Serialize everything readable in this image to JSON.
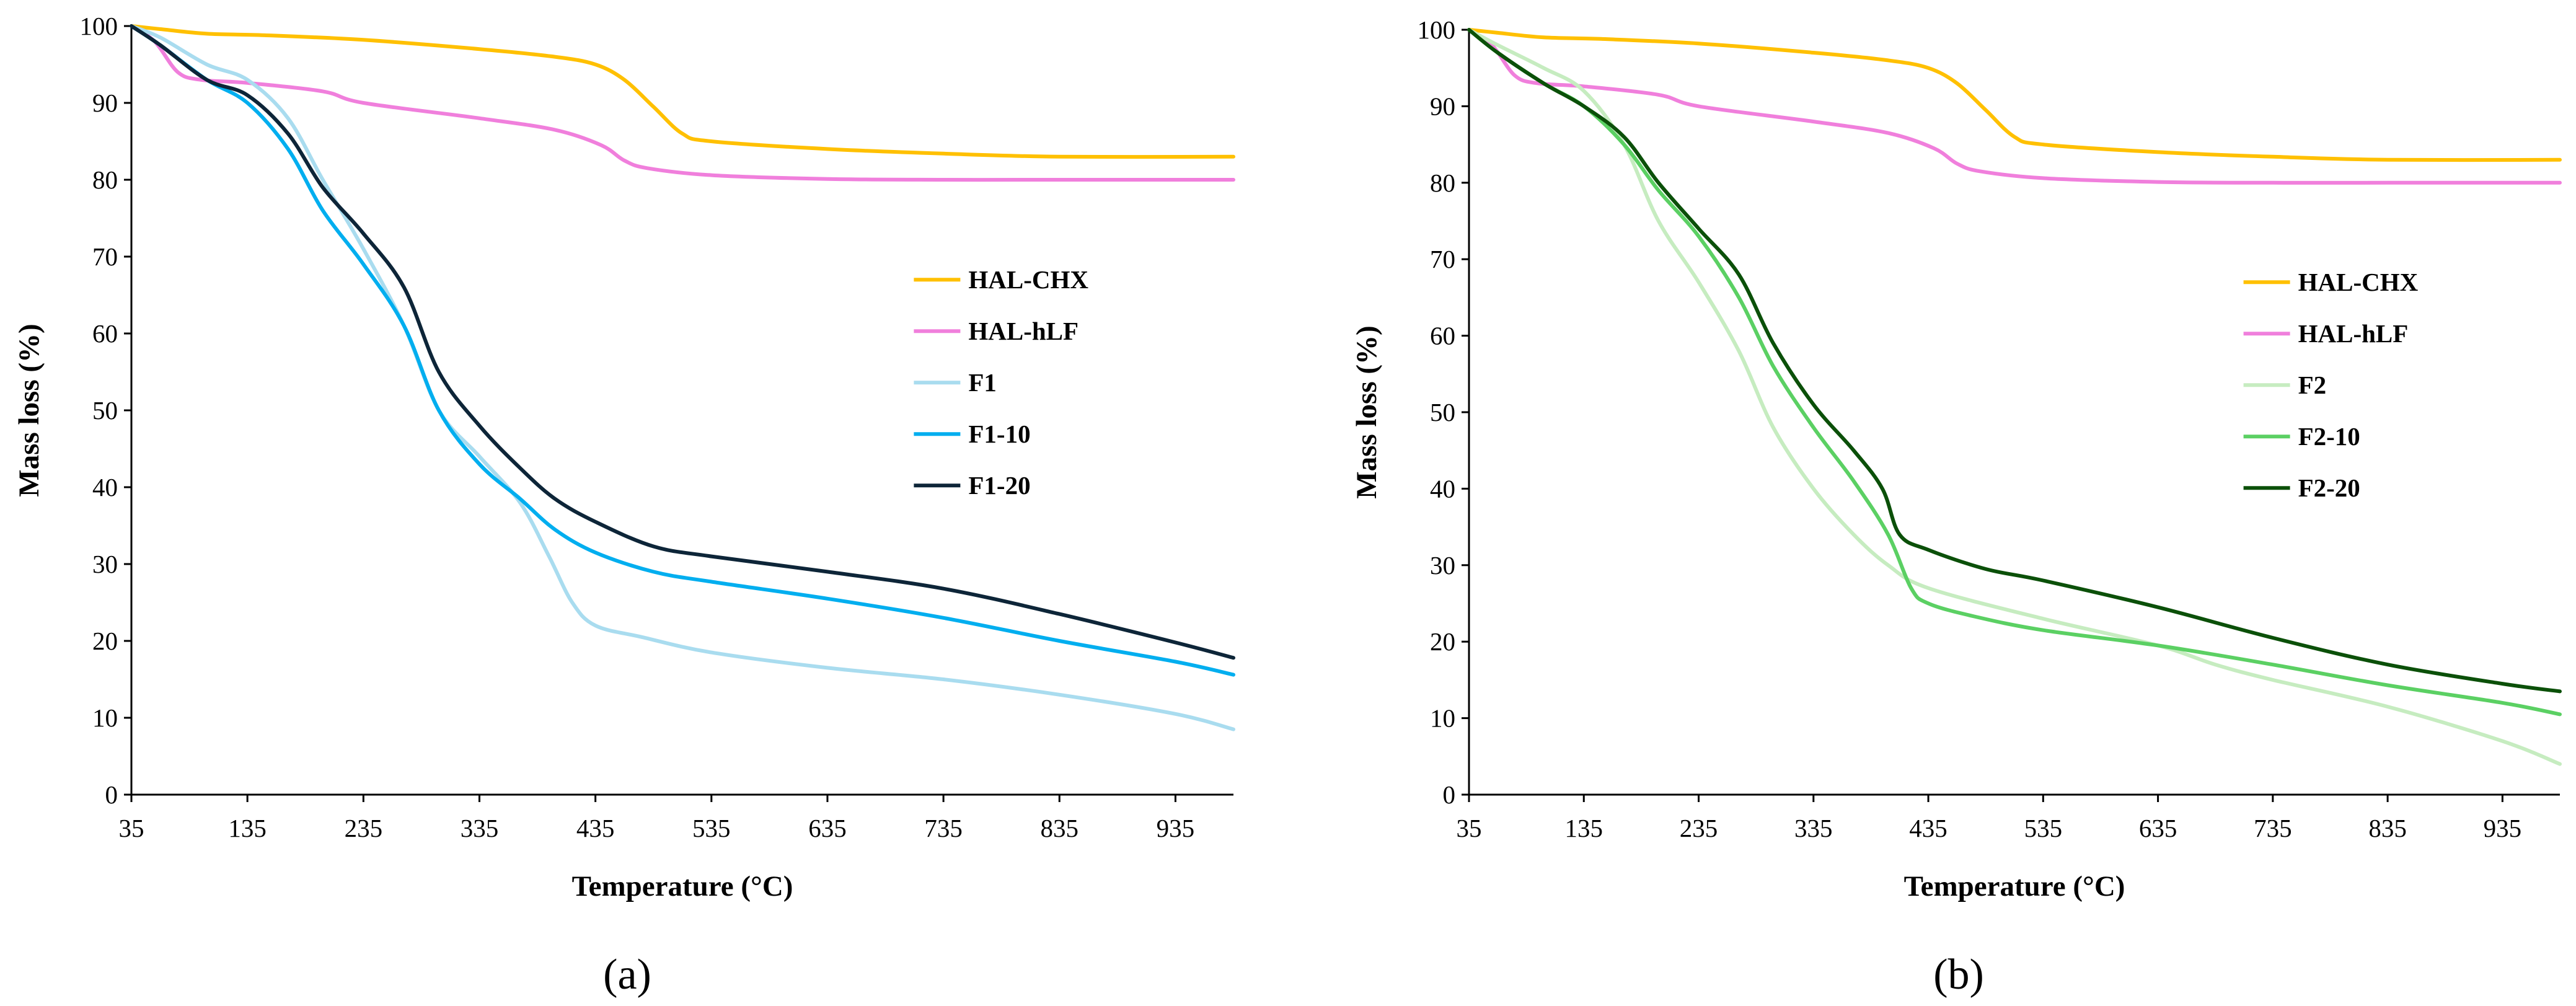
{
  "colors": {
    "HAL-CHX": "#FFC000",
    "HAL-hLF": "#F07FDC",
    "F1": "#A9DCEF",
    "F1-10": "#00AEEF",
    "F1-20": "#0D2538",
    "F2": "#C6ECC0",
    "F2-10": "#5BD063",
    "F2-20": "#0B5009"
  },
  "chart_data": [
    {
      "type": "line",
      "panel_label": "(a)",
      "xlabel": "Temperature (°C)",
      "ylabel": "Mass loss (%)",
      "xlim": [
        35,
        985
      ],
      "ylim": [
        0,
        100
      ],
      "xticks": [
        35,
        135,
        235,
        335,
        435,
        535,
        635,
        735,
        835,
        935
      ],
      "yticks": [
        0,
        10,
        20,
        30,
        40,
        50,
        60,
        70,
        80,
        90,
        100
      ],
      "legend_position": "center-right",
      "series": [
        {
          "name": "HAL-CHX",
          "x": [
            35,
            60,
            100,
            150,
            235,
            335,
            400,
            435,
            460,
            485,
            510,
            535,
            635,
            735,
            835,
            985
          ],
          "y": [
            100,
            99.6,
            99,
            98.8,
            98.2,
            97,
            96,
            95,
            93,
            89.5,
            86,
            85,
            84,
            83.4,
            83,
            83
          ]
        },
        {
          "name": "HAL-hLF",
          "x": [
            35,
            55,
            75,
            95,
            135,
            200,
            235,
            335,
            400,
            440,
            460,
            480,
            535,
            635,
            735,
            835,
            985
          ],
          "y": [
            100,
            98,
            94,
            93,
            92.6,
            91.5,
            90,
            88,
            86.5,
            84.5,
            82.5,
            81.5,
            80.6,
            80.1,
            80,
            80,
            80
          ]
        },
        {
          "name": "F1",
          "x": [
            35,
            60,
            100,
            135,
            170,
            200,
            235,
            270,
            300,
            335,
            370,
            395,
            415,
            435,
            475,
            535,
            635,
            735,
            835,
            935,
            985
          ],
          "y": [
            100,
            98.5,
            95,
            93,
            88,
            80,
            71,
            61,
            50,
            44,
            38,
            31,
            25,
            22,
            20.5,
            18.5,
            16.5,
            15,
            13,
            10.5,
            8.5
          ]
        },
        {
          "name": "F1-10",
          "x": [
            35,
            60,
            100,
            135,
            170,
            200,
            235,
            270,
            300,
            335,
            370,
            400,
            435,
            485,
            535,
            635,
            735,
            835,
            935,
            985
          ],
          "y": [
            100,
            97.5,
            93,
            90,
            84,
            76,
            69,
            61,
            50,
            43,
            38.5,
            34.5,
            31.5,
            29,
            27.7,
            25.5,
            23,
            20,
            17.3,
            15.6
          ]
        },
        {
          "name": "F1-20",
          "x": [
            35,
            60,
            100,
            135,
            170,
            200,
            235,
            270,
            300,
            335,
            370,
            400,
            435,
            485,
            535,
            635,
            735,
            835,
            935,
            985
          ],
          "y": [
            100,
            97.5,
            93,
            91,
            86,
            79,
            73,
            66,
            55,
            48,
            42.5,
            38.5,
            35.5,
            32.3,
            31,
            29,
            26.8,
            23.5,
            19.8,
            17.8
          ]
        }
      ]
    },
    {
      "type": "line",
      "panel_label": "(b)",
      "xlabel": "Temperature (°C)",
      "ylabel": "Mass loss (%)",
      "xlim": [
        35,
        985
      ],
      "ylim": [
        0,
        100
      ],
      "xticks": [
        35,
        135,
        235,
        335,
        435,
        535,
        635,
        735,
        835,
        935
      ],
      "yticks": [
        0,
        10,
        20,
        30,
        40,
        50,
        60,
        70,
        80,
        90,
        100
      ],
      "legend_position": "center-right",
      "series": [
        {
          "name": "HAL-CHX",
          "x": [
            35,
            60,
            100,
            150,
            235,
            335,
            400,
            435,
            460,
            485,
            510,
            535,
            635,
            735,
            835,
            985
          ],
          "y": [
            100,
            99.6,
            99,
            98.8,
            98.2,
            97,
            96,
            95,
            93,
            89.5,
            86,
            85,
            84,
            83.4,
            83,
            83
          ]
        },
        {
          "name": "HAL-hLF",
          "x": [
            35,
            55,
            75,
            95,
            135,
            200,
            235,
            335,
            400,
            440,
            460,
            480,
            535,
            635,
            735,
            835,
            985
          ],
          "y": [
            100,
            98,
            94,
            93,
            92.6,
            91.5,
            90,
            88,
            86.5,
            84.5,
            82.5,
            81.5,
            80.6,
            80.1,
            80,
            80,
            80
          ]
        },
        {
          "name": "F2",
          "x": [
            35,
            60,
            100,
            135,
            170,
            200,
            235,
            270,
            300,
            335,
            370,
            400,
            435,
            535,
            635,
            685,
            735,
            835,
            935,
            985
          ],
          "y": [
            100,
            98,
            95,
            92,
            85,
            75,
            67,
            58,
            48,
            40,
            34,
            30,
            27,
            23,
            19.5,
            17,
            15,
            11.5,
            7,
            4
          ]
        },
        {
          "name": "F2-10",
          "x": [
            35,
            60,
            100,
            135,
            170,
            200,
            235,
            270,
            300,
            335,
            370,
            400,
            420,
            435,
            475,
            535,
            635,
            735,
            835,
            935,
            985
          ],
          "y": [
            100,
            97,
            93,
            90,
            85,
            79,
            73,
            65,
            56,
            48,
            41,
            34,
            27,
            25,
            23.3,
            21.5,
            19.5,
            17,
            14.3,
            12,
            10.5
          ]
        },
        {
          "name": "F2-20",
          "x": [
            35,
            60,
            100,
            135,
            170,
            200,
            235,
            270,
            300,
            335,
            370,
            395,
            410,
            435,
            485,
            535,
            635,
            735,
            835,
            935,
            985
          ],
          "y": [
            100,
            97,
            93,
            90,
            86,
            80,
            74,
            68,
            59,
            51,
            45,
            40,
            34,
            32,
            29.5,
            28,
            24.5,
            20.5,
            17,
            14.5,
            13.5
          ]
        }
      ]
    }
  ]
}
